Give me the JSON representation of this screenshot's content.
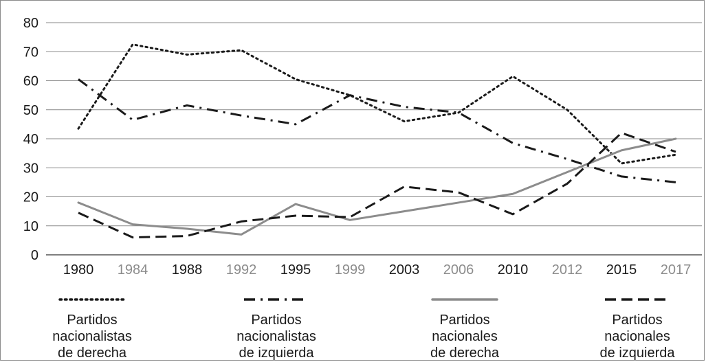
{
  "chart_data": {
    "type": "line",
    "categories": [
      "1980",
      "1984",
      "1988",
      "1992",
      "1995",
      "1999",
      "2003",
      "2006",
      "2010",
      "2012",
      "2015",
      "2017"
    ],
    "y_ticks": [
      0,
      10,
      20,
      30,
      40,
      50,
      60,
      70,
      80
    ],
    "ylim": [
      0,
      80
    ],
    "grid": "horizontal",
    "legend_position": "bottom",
    "category_colors": [
      "#1a1a1a",
      "#8c8c8c"
    ],
    "series": [
      {
        "name": "Partidos nacionalistas de derecha",
        "legend_lines": [
          "Partidos",
          "nacionalistas",
          "de derecha"
        ],
        "style": "dotted",
        "color": "#1a1a1a",
        "values": [
          43.5,
          72.5,
          69,
          70.5,
          60.5,
          55,
          46,
          49,
          61.5,
          50,
          31.5,
          34.5
        ]
      },
      {
        "name": "Partidos nacionalistas de izquierda",
        "legend_lines": [
          "Partidos",
          "nacionalistas",
          "de izquierda"
        ],
        "style": "dashdot",
        "color": "#1a1a1a",
        "values": [
          60.5,
          46.5,
          51.5,
          48,
          45,
          55,
          51,
          49,
          38.5,
          33,
          27,
          25
        ]
      },
      {
        "name": "Partidos nacionales de derecha",
        "legend_lines": [
          "Partidos",
          "nacionales",
          "de derecha"
        ],
        "style": "solid",
        "color": "#8c8c8c",
        "values": [
          18,
          10.5,
          9,
          7,
          17.5,
          12,
          15,
          18,
          21,
          28.5,
          36,
          40
        ]
      },
      {
        "name": "Partidos nacionales de izquierda",
        "legend_lines": [
          "Partidos",
          "nacionales",
          "de izquierda"
        ],
        "style": "dashed",
        "color": "#1a1a1a",
        "values": [
          14.5,
          6,
          6.5,
          11.5,
          13.5,
          13,
          23.5,
          21.5,
          14,
          24.5,
          42,
          35.5
        ]
      }
    ]
  }
}
